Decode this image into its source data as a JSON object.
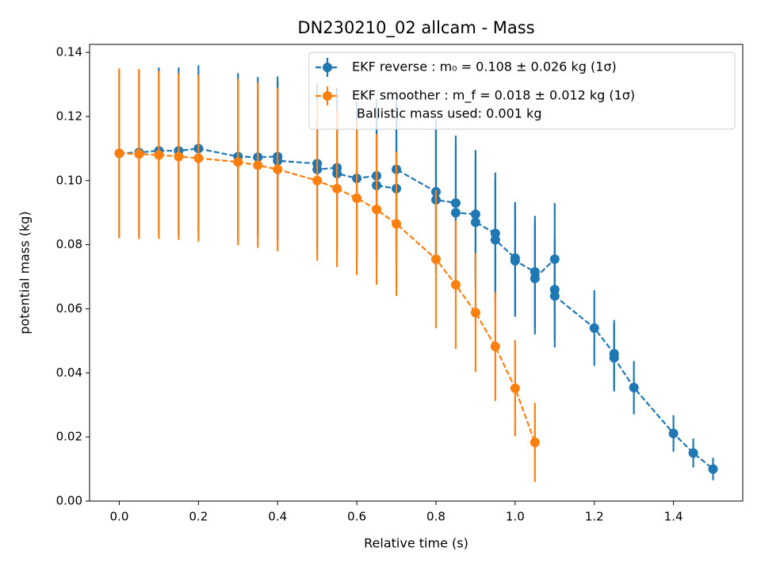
{
  "chart_data": {
    "type": "errorbar",
    "title": "DN230210_02 allcam - Mass",
    "xlabel": "Relative time (s)",
    "ylabel": "potential mass (kg)",
    "xlim": [
      -0.075,
      1.575
    ],
    "ylim": [
      0,
      0.1425
    ],
    "xticks": [
      {
        "value": 0,
        "label": "0.0"
      },
      {
        "value": 0.2,
        "label": "0.2"
      },
      {
        "value": 0.4,
        "label": "0.4"
      },
      {
        "value": 0.6,
        "label": "0.6"
      },
      {
        "value": 0.8,
        "label": "0.8"
      },
      {
        "value": 1.0,
        "label": "1.0"
      },
      {
        "value": 1.2,
        "label": "1.2"
      },
      {
        "value": 1.4,
        "label": "1.4"
      }
    ],
    "yticks": [
      {
        "value": 0,
        "label": "0.00"
      },
      {
        "value": 0.02,
        "label": "0.02"
      },
      {
        "value": 0.04,
        "label": "0.04"
      },
      {
        "value": 0.06,
        "label": "0.06"
      },
      {
        "value": 0.08,
        "label": "0.08"
      },
      {
        "value": 0.1,
        "label": "0.10"
      },
      {
        "value": 0.12,
        "label": "0.12"
      },
      {
        "value": 0.14,
        "label": "0.14"
      }
    ],
    "legend_position": "upper right",
    "legend_note": "Ballistic mass used: 0.001 kg",
    "series": [
      {
        "name": "EKF reverse : m₀ =  0.108 ± 0.026 kg (1σ)",
        "color": "#1f77b4",
        "x": [
          0,
          0.05,
          0.1,
          0.15,
          0.2,
          0.3,
          0.35,
          0.4,
          0.4,
          0.5,
          0.5,
          0.55,
          0.55,
          0.6,
          0.65,
          0.65,
          0.7,
          0.7,
          0.8,
          0.8,
          0.85,
          0.85,
          0.9,
          0.9,
          0.95,
          0.95,
          1.0,
          1.0,
          1.05,
          1.05,
          1.1,
          1.1,
          1.1,
          1.2,
          1.25,
          1.25,
          1.3,
          1.4,
          1.45,
          1.5
        ],
        "values": [
          0.1085,
          0.1088,
          0.1093,
          0.1093,
          0.11,
          0.1075,
          0.1073,
          0.1075,
          0.1062,
          0.1053,
          0.1035,
          0.104,
          0.1022,
          0.1007,
          0.1015,
          0.0985,
          0.0975,
          0.1035,
          0.0965,
          0.094,
          0.093,
          0.09,
          0.0895,
          0.087,
          0.0835,
          0.0815,
          0.0758,
          0.075,
          0.0715,
          0.0695,
          0.0755,
          0.066,
          0.064,
          0.054,
          0.046,
          0.0447,
          0.0354,
          0.0211,
          0.015,
          0.01
        ],
        "errors": [
          0.026,
          0.026,
          0.026,
          0.026,
          0.026,
          0.026,
          0.025,
          0.025,
          0.025,
          0.025,
          0.025,
          0.025,
          0.025,
          0.024,
          0.024,
          0.024,
          0.024,
          0.024,
          0.023,
          0.023,
          0.021,
          0.021,
          0.02,
          0.02,
          0.019,
          0.019,
          0.0175,
          0.0175,
          0.0175,
          0.0175,
          0.0175,
          0.016,
          0.016,
          0.0118,
          0.0105,
          0.0105,
          0.0083,
          0.0057,
          0.0045,
          0.0035
        ]
      },
      {
        "name": "EKF smoother : m_f =  0.018 ± 0.012 kg (1σ)",
        "color": "#ff7f0e",
        "x": [
          0,
          0.05,
          0.1,
          0.15,
          0.2,
          0.3,
          0.35,
          0.4,
          0.5,
          0.55,
          0.6,
          0.65,
          0.7,
          0.8,
          0.85,
          0.9,
          0.95,
          1.0,
          1.05
        ],
        "values": [
          0.1085,
          0.1083,
          0.108,
          0.1075,
          0.107,
          0.1058,
          0.1048,
          0.1035,
          0.1,
          0.0975,
          0.0945,
          0.091,
          0.0865,
          0.0755,
          0.0675,
          0.0588,
          0.0482,
          0.0352,
          0.0183
        ],
        "errors": [
          0.0265,
          0.0265,
          0.0262,
          0.026,
          0.026,
          0.026,
          0.0258,
          0.0255,
          0.025,
          0.0245,
          0.024,
          0.0235,
          0.0225,
          0.0215,
          0.02,
          0.0185,
          0.017,
          0.015,
          0.0123
        ]
      }
    ]
  }
}
